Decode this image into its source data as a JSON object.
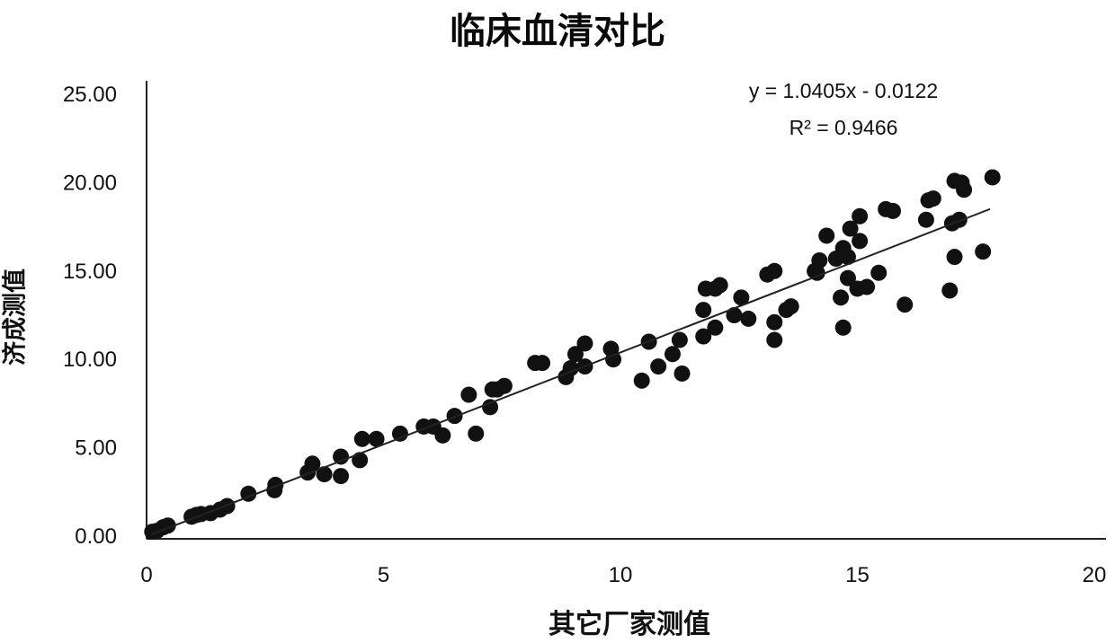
{
  "chart_data": {
    "type": "scatter",
    "title": "临床血清对比",
    "xlabel": "其它厂家测值",
    "ylabel": "济成测值",
    "xlim": [
      0,
      20
    ],
    "ylim": [
      0,
      25
    ],
    "x_ticks": [
      "0",
      "5",
      "10",
      "15",
      "20"
    ],
    "y_ticks": [
      "0.00",
      "5.00",
      "10.00",
      "15.00",
      "20.00",
      "25.00"
    ],
    "grid": false,
    "legend": "none",
    "marker_color": "#111111",
    "trendline": {
      "slope": 1.0405,
      "intercept": -0.0122,
      "x_range": [
        0.1,
        17.8
      ],
      "equation": "y = 1.0405x - 0.0122",
      "r2": "R² = 0.9466"
    },
    "points": [
      [
        0.12,
        0.25
      ],
      [
        0.22,
        0.3
      ],
      [
        0.35,
        0.5
      ],
      [
        0.45,
        0.6
      ],
      [
        0.95,
        1.1
      ],
      [
        1.05,
        1.2
      ],
      [
        1.15,
        1.25
      ],
      [
        1.35,
        1.3
      ],
      [
        1.55,
        1.5
      ],
      [
        1.7,
        1.7
      ],
      [
        2.15,
        2.4
      ],
      [
        2.7,
        2.6
      ],
      [
        2.72,
        2.9
      ],
      [
        3.4,
        3.6
      ],
      [
        3.5,
        4.1
      ],
      [
        3.75,
        3.5
      ],
      [
        4.1,
        3.4
      ],
      [
        4.1,
        4.5
      ],
      [
        4.5,
        4.3
      ],
      [
        4.55,
        5.5
      ],
      [
        4.85,
        5.5
      ],
      [
        5.35,
        5.8
      ],
      [
        5.85,
        6.2
      ],
      [
        6.05,
        6.2
      ],
      [
        6.25,
        5.7
      ],
      [
        6.5,
        6.8
      ],
      [
        6.8,
        8.0
      ],
      [
        6.95,
        5.8
      ],
      [
        7.25,
        7.3
      ],
      [
        7.3,
        8.3
      ],
      [
        7.4,
        8.3
      ],
      [
        7.55,
        8.5
      ],
      [
        8.2,
        9.8
      ],
      [
        8.35,
        9.8
      ],
      [
        8.85,
        9.0
      ],
      [
        8.95,
        9.5
      ],
      [
        9.05,
        10.3
      ],
      [
        9.25,
        10.9
      ],
      [
        9.25,
        9.6
      ],
      [
        9.8,
        10.6
      ],
      [
        9.85,
        10.0
      ],
      [
        10.45,
        8.8
      ],
      [
        10.6,
        11.0
      ],
      [
        10.8,
        9.6
      ],
      [
        11.1,
        10.3
      ],
      [
        11.25,
        11.1
      ],
      [
        11.3,
        9.2
      ],
      [
        11.75,
        12.8
      ],
      [
        11.75,
        11.3
      ],
      [
        11.8,
        14.0
      ],
      [
        12.0,
        14.0
      ],
      [
        12.0,
        11.8
      ],
      [
        12.1,
        14.2
      ],
      [
        12.4,
        12.5
      ],
      [
        12.55,
        13.5
      ],
      [
        12.7,
        12.3
      ],
      [
        13.1,
        14.8
      ],
      [
        13.25,
        15.0
      ],
      [
        13.25,
        12.1
      ],
      [
        13.25,
        11.1
      ],
      [
        13.5,
        12.8
      ],
      [
        13.6,
        13.0
      ],
      [
        14.1,
        15.0
      ],
      [
        14.15,
        14.9
      ],
      [
        14.2,
        15.6
      ],
      [
        14.35,
        17.0
      ],
      [
        14.55,
        15.7
      ],
      [
        14.65,
        13.5
      ],
      [
        14.7,
        11.8
      ],
      [
        14.7,
        16.3
      ],
      [
        14.8,
        14.6
      ],
      [
        14.8,
        15.8
      ],
      [
        14.85,
        17.4
      ],
      [
        15.0,
        14.0
      ],
      [
        15.05,
        16.7
      ],
      [
        15.05,
        18.1
      ],
      [
        15.2,
        14.1
      ],
      [
        15.45,
        14.9
      ],
      [
        15.6,
        18.5
      ],
      [
        15.75,
        18.4
      ],
      [
        16.0,
        13.1
      ],
      [
        16.45,
        17.9
      ],
      [
        16.5,
        19.0
      ],
      [
        16.6,
        19.1
      ],
      [
        16.95,
        13.9
      ],
      [
        17.0,
        17.7
      ],
      [
        17.05,
        15.8
      ],
      [
        17.05,
        20.1
      ],
      [
        17.15,
        17.9
      ],
      [
        17.2,
        20.0
      ],
      [
        17.25,
        19.6
      ],
      [
        17.65,
        16.1
      ],
      [
        17.85,
        20.3
      ]
    ]
  }
}
